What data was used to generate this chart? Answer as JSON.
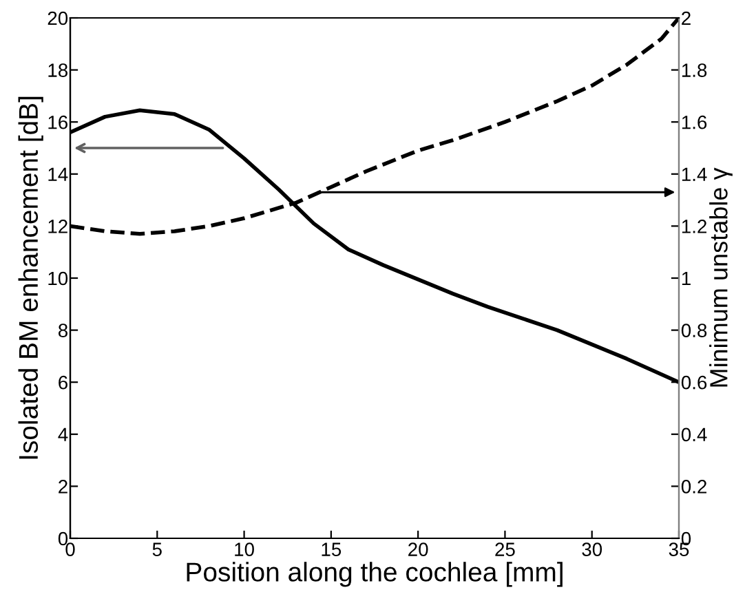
{
  "chart_data": {
    "type": "line",
    "xlabel": "Position along the cochlea [mm]",
    "ylabel": "Isolated BM enhancement [dB]",
    "y2label": "Minimum unstable γ",
    "xlim": [
      0,
      35
    ],
    "xticks": [
      0,
      5,
      10,
      15,
      20,
      25,
      30,
      35
    ],
    "ylim": [
      0,
      20
    ],
    "yticks": [
      0,
      2,
      4,
      6,
      8,
      10,
      12,
      14,
      16,
      18,
      20
    ],
    "y2lim": [
      0,
      2
    ],
    "y2ticks": [
      0,
      0.2,
      0.4,
      0.6,
      0.8,
      1,
      1.2,
      1.4,
      1.6,
      1.8,
      2
    ],
    "grid": false,
    "legend": false,
    "marker": "none",
    "series": [
      {
        "color": "#000000",
        "line_style": "solid",
        "x": [
          0,
          2,
          4,
          6,
          8,
          10,
          12,
          14,
          16,
          18,
          20,
          22,
          24,
          26,
          28,
          30,
          32,
          35
        ],
        "values": [
          15.6,
          16.2,
          16.45,
          16.3,
          15.7,
          14.6,
          13.4,
          12.1,
          11.1,
          10.5,
          9.95,
          9.4,
          8.9,
          8.45,
          8.0,
          7.45,
          6.9,
          6.0
        ]
      },
      {
        "color": "#000000",
        "line_style": "dashed",
        "axis": "y2",
        "x": [
          0,
          2,
          4,
          6,
          8,
          10,
          12,
          13,
          15,
          17,
          20,
          22,
          25,
          28,
          30,
          32,
          34,
          35
        ],
        "values": [
          1.2,
          1.18,
          1.17,
          1.18,
          1.2,
          1.23,
          1.27,
          1.29,
          1.35,
          1.41,
          1.49,
          1.53,
          1.6,
          1.68,
          1.74,
          1.82,
          1.92,
          2.0
        ]
      }
    ]
  }
}
